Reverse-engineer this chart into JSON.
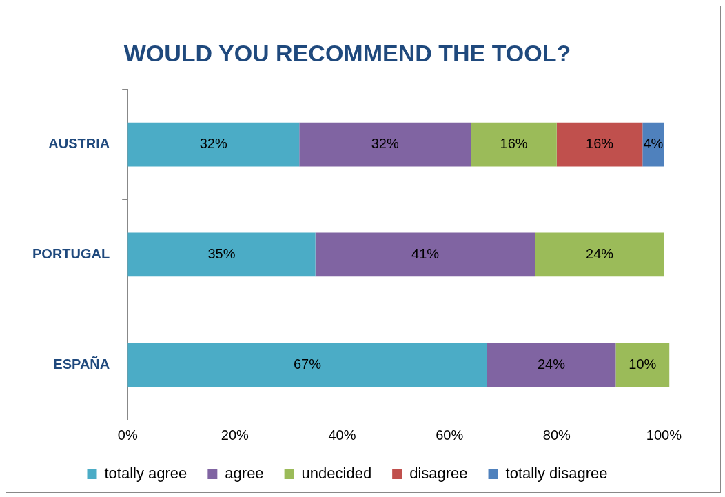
{
  "chart_data": {
    "type": "bar",
    "orientation": "horizontal",
    "stacked": true,
    "title": "WOULD YOU RECOMMEND THE TOOL?",
    "categories": [
      "AUSTRIA",
      "PORTUGAL",
      "ESPAÑA"
    ],
    "series": [
      {
        "name": "totally agree",
        "color": "#4bacc6",
        "values": [
          32,
          35,
          67
        ],
        "value_labels": [
          "32%",
          "35%",
          "67%"
        ]
      },
      {
        "name": "agree",
        "color": "#8064a2",
        "values": [
          32,
          41,
          24
        ],
        "value_labels": [
          "32%",
          "41%",
          "24%"
        ]
      },
      {
        "name": "undecided",
        "color": "#9bbb59",
        "values": [
          16,
          24,
          10
        ],
        "value_labels": [
          "16%",
          "24%",
          "10%"
        ]
      },
      {
        "name": "disagree",
        "color": "#c0504d",
        "values": [
          16,
          null,
          null
        ],
        "value_labels": [
          "16%",
          null,
          null
        ]
      },
      {
        "name": "totally disagree",
        "color": "#4f81bd",
        "values": [
          4,
          null,
          null
        ],
        "value_labels": [
          "4%",
          null,
          null
        ]
      }
    ],
    "xlim": [
      0,
      102
    ],
    "xticks": [
      {
        "value": 0,
        "label": "0%"
      },
      {
        "value": 20,
        "label": "20%"
      },
      {
        "value": 40,
        "label": "40%"
      },
      {
        "value": 60,
        "label": "60%"
      },
      {
        "value": 80,
        "label": "80%"
      },
      {
        "value": 100,
        "label": "100%"
      }
    ],
    "grid": false,
    "legend": "bottom"
  }
}
